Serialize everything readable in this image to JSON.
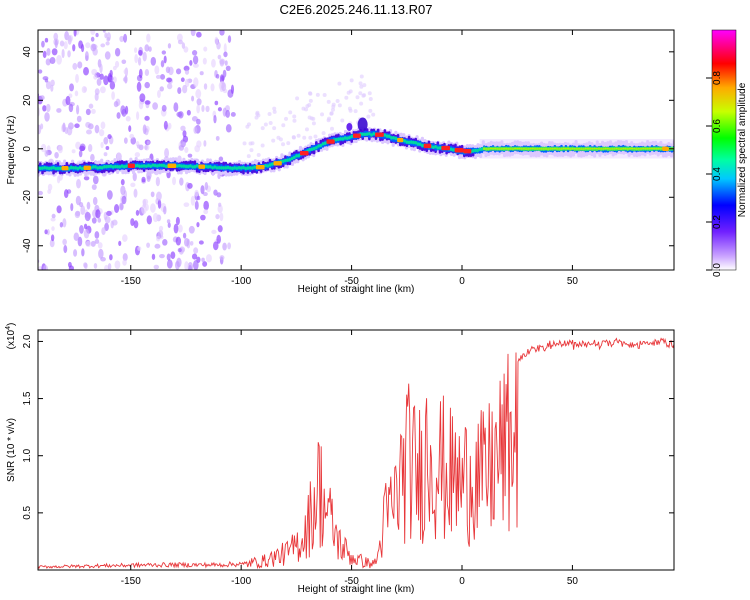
{
  "title": "C2E6.2025.246.11.13.R07",
  "colors": {
    "signal": "#e8373a",
    "axis": "#000000",
    "noise": "#b477f0"
  },
  "chart_data": [
    {
      "type": "heatmap",
      "name": "spectrogram",
      "xlabel": "Height of straight line (km)",
      "ylabel": "Frequency (Hz)",
      "xlim": [
        -192,
        96
      ],
      "ylim": [
        -50,
        49
      ],
      "xticks": [
        -150,
        -100,
        -50,
        0,
        50
      ],
      "yticks": [
        -40,
        -20,
        0,
        20,
        40
      ],
      "ridge_x": [
        -192,
        -175,
        -160,
        -150,
        -130,
        -115,
        -105,
        -95,
        -88,
        -80,
        -75,
        -70,
        -65,
        -60,
        -55,
        -50,
        -45,
        -40,
        -35,
        -30,
        -25,
        -20,
        -15,
        -10,
        -5,
        0,
        5,
        10,
        20,
        40,
        60,
        80,
        96
      ],
      "ridge_freq_hz": [
        -8,
        -8,
        -7.5,
        -7,
        -7,
        -7.5,
        -8,
        -8,
        -7,
        -5,
        -3,
        -1,
        1,
        3,
        4,
        5,
        6,
        6,
        5.5,
        4,
        3,
        2,
        1,
        0.5,
        0,
        -1,
        -1,
        0,
        0,
        0,
        0,
        0,
        0
      ],
      "colorbar": {
        "label": "Normalized spectral amplitude",
        "ticks": [
          0.0,
          0.2,
          0.4,
          0.6,
          0.8
        ],
        "range": [
          0,
          1
        ]
      }
    },
    {
      "type": "line",
      "name": "snr",
      "xlabel": "Height of straight line (km)",
      "ylabel": "SNR (10 * v/v)",
      "multiplier": "(x10",
      "multiplier_exp": "4",
      "multiplier_close": ")",
      "xlim": [
        -192,
        96
      ],
      "ylim": [
        0,
        2.1
      ],
      "xticks": [
        -150,
        -100,
        -50,
        0,
        50
      ],
      "yticks": [
        0.5,
        1.0,
        1.5,
        2.0
      ],
      "ytick_labels": [
        "0.5",
        "1.0",
        "1.5",
        "2.0"
      ],
      "envelope_x": [
        -192,
        -140,
        -110,
        -100,
        -96,
        -90,
        -85,
        -78,
        -72,
        -68,
        -65,
        -62,
        -58,
        -55,
        -50,
        -45,
        -40,
        -38,
        -35,
        -30,
        -25,
        -20,
        -15,
        -10,
        -5,
        0,
        5,
        10,
        15,
        20,
        25,
        30,
        40,
        50,
        60,
        70,
        80,
        90,
        96
      ],
      "envelope_y": [
        0.03,
        0.05,
        0.05,
        0.06,
        0.1,
        0.12,
        0.18,
        0.25,
        0.45,
        0.8,
        1.2,
        0.9,
        0.55,
        0.35,
        0.18,
        0.12,
        0.08,
        0.2,
        0.7,
        1.0,
        1.55,
        1.3,
        1.75,
        1.45,
        1.3,
        1.2,
        1.4,
        1.25,
        1.5,
        1.7,
        1.85,
        1.95,
        2.0,
        2.0,
        2.0,
        2.02,
        2.0,
        2.03,
        2.0
      ]
    }
  ]
}
